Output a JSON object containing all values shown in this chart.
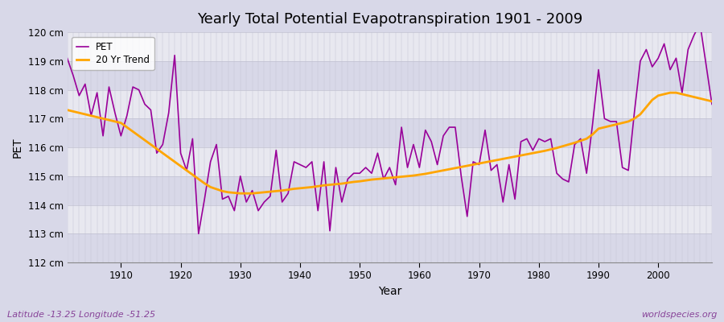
{
  "title": "Yearly Total Potential Evapotranspiration 1901 - 2009",
  "xlabel": "Year",
  "ylabel": "PET",
  "subtitle": "Latitude -13.25 Longitude -51.25",
  "watermark": "worldspecies.org",
  "fig_bg_color": "#d8d8e8",
  "plot_bg_color": "#e8e8f0",
  "band_color_dark": "#d8d8e8",
  "band_color_light": "#e8e8f0",
  "grid_color": "#c0c0d0",
  "pet_color": "#990099",
  "trend_color": "#ffa500",
  "ylim": [
    112,
    120
  ],
  "ytick_labels": [
    "112 cm",
    "113 cm",
    "114 cm",
    "115 cm",
    "116 cm",
    "117 cm",
    "118 cm",
    "119 cm",
    "120 cm"
  ],
  "ytick_values": [
    112,
    113,
    114,
    115,
    116,
    117,
    118,
    119,
    120
  ],
  "years": [
    1901,
    1902,
    1903,
    1904,
    1905,
    1906,
    1907,
    1908,
    1909,
    1910,
    1911,
    1912,
    1913,
    1914,
    1915,
    1916,
    1917,
    1918,
    1919,
    1920,
    1921,
    1922,
    1923,
    1924,
    1925,
    1926,
    1927,
    1928,
    1929,
    1930,
    1931,
    1932,
    1933,
    1934,
    1935,
    1936,
    1937,
    1938,
    1939,
    1940,
    1941,
    1942,
    1943,
    1944,
    1945,
    1946,
    1947,
    1948,
    1949,
    1950,
    1951,
    1952,
    1953,
    1954,
    1955,
    1956,
    1957,
    1958,
    1959,
    1960,
    1961,
    1962,
    1963,
    1964,
    1965,
    1966,
    1967,
    1968,
    1969,
    1970,
    1971,
    1972,
    1973,
    1974,
    1975,
    1976,
    1977,
    1978,
    1979,
    1980,
    1981,
    1982,
    1983,
    1984,
    1985,
    1986,
    1987,
    1988,
    1989,
    1990,
    1991,
    1992,
    1993,
    1994,
    1995,
    1996,
    1997,
    1998,
    1999,
    2000,
    2001,
    2002,
    2003,
    2004,
    2005,
    2006,
    2007,
    2008,
    2009
  ],
  "pet_values": [
    119.1,
    118.5,
    117.8,
    118.2,
    117.1,
    117.9,
    116.4,
    118.1,
    117.2,
    116.4,
    117.1,
    118.1,
    118.0,
    117.5,
    117.3,
    115.8,
    116.1,
    117.2,
    119.2,
    115.8,
    115.2,
    116.3,
    113.0,
    114.2,
    115.5,
    116.1,
    114.2,
    114.3,
    113.8,
    115.0,
    114.1,
    114.5,
    113.8,
    114.1,
    114.3,
    115.9,
    114.1,
    114.4,
    115.5,
    115.4,
    115.3,
    115.5,
    113.8,
    115.5,
    113.1,
    115.3,
    114.1,
    114.9,
    115.1,
    115.1,
    115.3,
    115.1,
    115.8,
    114.9,
    115.3,
    114.7,
    116.7,
    115.3,
    116.1,
    115.3,
    116.6,
    116.2,
    115.4,
    116.4,
    116.7,
    116.7,
    115.0,
    113.6,
    115.5,
    115.4,
    116.6,
    115.2,
    115.4,
    114.1,
    115.4,
    114.2,
    116.2,
    116.3,
    115.9,
    116.3,
    116.2,
    116.3,
    115.1,
    114.9,
    114.8,
    116.1,
    116.3,
    115.1,
    116.8,
    118.7,
    117.0,
    116.9,
    116.9,
    115.3,
    115.2,
    117.2,
    119.0,
    119.4,
    118.8,
    119.1,
    119.6,
    118.7,
    119.1,
    117.9,
    119.4,
    119.9,
    120.3,
    118.9,
    117.5
  ],
  "trend_values_by_year": {
    "1901": 117.3,
    "1902": 117.25,
    "1903": 117.2,
    "1904": 117.15,
    "1905": 117.1,
    "1906": 117.05,
    "1907": 117.0,
    "1908": 116.95,
    "1909": 116.9,
    "1910": 116.85,
    "1911": 116.7,
    "1912": 116.55,
    "1913": 116.4,
    "1914": 116.25,
    "1915": 116.1,
    "1916": 115.95,
    "1917": 115.8,
    "1918": 115.65,
    "1919": 115.5,
    "1920": 115.35,
    "1921": 115.2,
    "1922": 115.05,
    "1923": 114.9,
    "1924": 114.75,
    "1925": 114.62,
    "1926": 114.55,
    "1927": 114.48,
    "1928": 114.44,
    "1929": 114.42,
    "1930": 114.4,
    "1931": 114.4,
    "1932": 114.4,
    "1933": 114.42,
    "1934": 114.44,
    "1935": 114.46,
    "1936": 114.48,
    "1937": 114.5,
    "1938": 114.53,
    "1939": 114.56,
    "1940": 114.58,
    "1941": 114.6,
    "1942": 114.62,
    "1943": 114.65,
    "1944": 114.68,
    "1945": 114.7,
    "1946": 114.72,
    "1947": 114.74,
    "1948": 114.77,
    "1949": 114.8,
    "1950": 114.82,
    "1951": 114.85,
    "1952": 114.88,
    "1953": 114.9,
    "1954": 114.92,
    "1955": 114.94,
    "1956": 114.96,
    "1957": 114.98,
    "1958": 115.0,
    "1959": 115.02,
    "1960": 115.05,
    "1961": 115.08,
    "1962": 115.12,
    "1963": 115.16,
    "1964": 115.2,
    "1965": 115.24,
    "1966": 115.28,
    "1967": 115.32,
    "1968": 115.36,
    "1969": 115.4,
    "1970": 115.44,
    "1971": 115.48,
    "1972": 115.52,
    "1973": 115.56,
    "1974": 115.6,
    "1975": 115.64,
    "1976": 115.68,
    "1977": 115.72,
    "1978": 115.76,
    "1979": 115.8,
    "1980": 115.84,
    "1981": 115.88,
    "1982": 115.93,
    "1983": 115.98,
    "1984": 116.04,
    "1985": 116.1,
    "1986": 116.16,
    "1987": 116.23,
    "1988": 116.3,
    "1989": 116.45,
    "1990": 116.65,
    "1991": 116.7,
    "1992": 116.75,
    "1993": 116.8,
    "1994": 116.85,
    "1995": 116.9,
    "1996": 117.0,
    "1997": 117.15,
    "1998": 117.4,
    "1999": 117.65,
    "2000": 117.8,
    "2001": 117.85,
    "2002": 117.9,
    "2003": 117.9,
    "2004": 117.85,
    "2005": 117.8,
    "2006": 117.75,
    "2007": 117.7,
    "2008": 117.65,
    "2009": 117.6
  }
}
